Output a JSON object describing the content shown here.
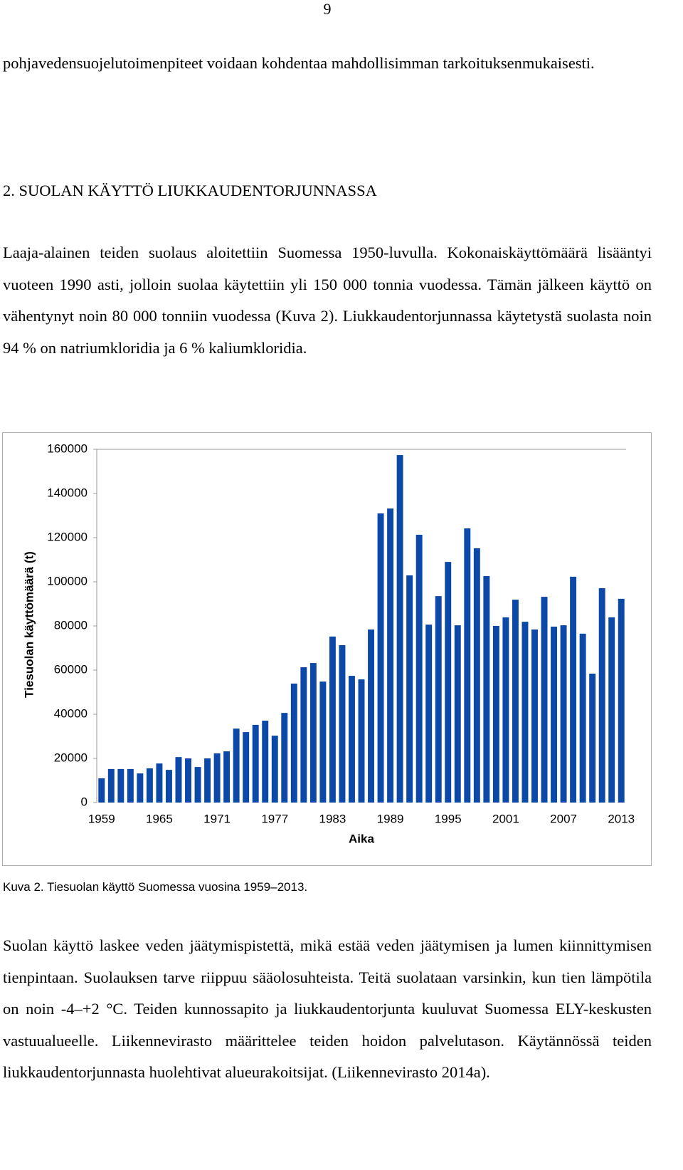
{
  "page_number": "9",
  "paragraphs": [
    "pohjavedensuojelutoimenpiteet voidaan kohdentaa mahdollisimman tarkoituksenmukaisesti.",
    "Laaja-alainen teiden suolaus aloitettiin Suomessa 1950-luvulla. Kokonaiskäyttömäärä lisääntyi vuoteen 1990 asti, jolloin suolaa käytettiin yli 150 000 tonnia vuodessa. Tämän jälkeen käyttö on vähentynyt noin 80 000 tonniin vuodessa (Kuva 2). Liukkaudentorjunnassa käytetystä suolasta noin 94 % on natriumkloridia ja 6 % kaliumkloridia.",
    "Suolan käyttö laskee veden jäätymispistettä, mikä estää veden jäätymisen ja lumen kiinnittymisen tienpintaan. Suolauksen tarve riippuu sääolosuhteista. Teitä suolataan varsinkin, kun tien lämpötila on noin -4–+2 °C. Teiden kunnossapito ja liukkaudentorjunta kuuluvat Suomessa ELY-keskusten vastuualueelle. Liikennevirasto määrittelee teiden hoidon palvelutason. Käytännössä teiden liukkaudentorjunnasta huolehtivat alueurakoitsijat. (Liikennevirasto 2014a)."
  ],
  "heading": "2.  SUOLAN KÄYTTÖ LIUKKAUDENTORJUNNASSA",
  "caption": "Kuva 2. Tiesuolan käyttö Suomessa vuosina 1959–2013.",
  "chart_data": {
    "type": "bar",
    "y_label": "Tiesuolan käyttömäärä (t)",
    "x_label": "Aika",
    "categories": [
      "1959",
      null,
      null,
      null,
      null,
      null,
      "1965",
      null,
      null,
      null,
      null,
      null,
      "1971",
      null,
      null,
      null,
      null,
      null,
      "1977",
      null,
      null,
      null,
      null,
      null,
      "1983",
      null,
      null,
      null,
      null,
      null,
      "1989",
      null,
      null,
      null,
      null,
      null,
      "1995",
      null,
      null,
      null,
      null,
      null,
      "2001",
      null,
      null,
      null,
      null,
      null,
      "2007",
      null,
      null,
      null,
      null,
      null,
      "2013"
    ],
    "values": [
      11000,
      15200,
      15200,
      15200,
      13200,
      15500,
      17700,
      14800,
      20600,
      20000,
      16100,
      20000,
      22300,
      23200,
      33500,
      31900,
      35200,
      37100,
      30300,
      40600,
      53900,
      61300,
      63200,
      54800,
      75200,
      71300,
      57400,
      55800,
      78400,
      131000,
      133200,
      157400,
      102900,
      121300,
      80600,
      93500,
      109000,
      80300,
      124200,
      115200,
      102600,
      80000,
      83900,
      91900,
      81900,
      78400,
      93200,
      79700,
      80300,
      102300,
      76500,
      58400,
      97100,
      83900,
      92300
    ],
    "color": "#0b48a8",
    "ylim": [
      0,
      160000
    ],
    "yticks": [
      0,
      20000,
      40000,
      60000,
      80000,
      100000,
      120000,
      140000,
      160000
    ],
    "grid": false
  }
}
